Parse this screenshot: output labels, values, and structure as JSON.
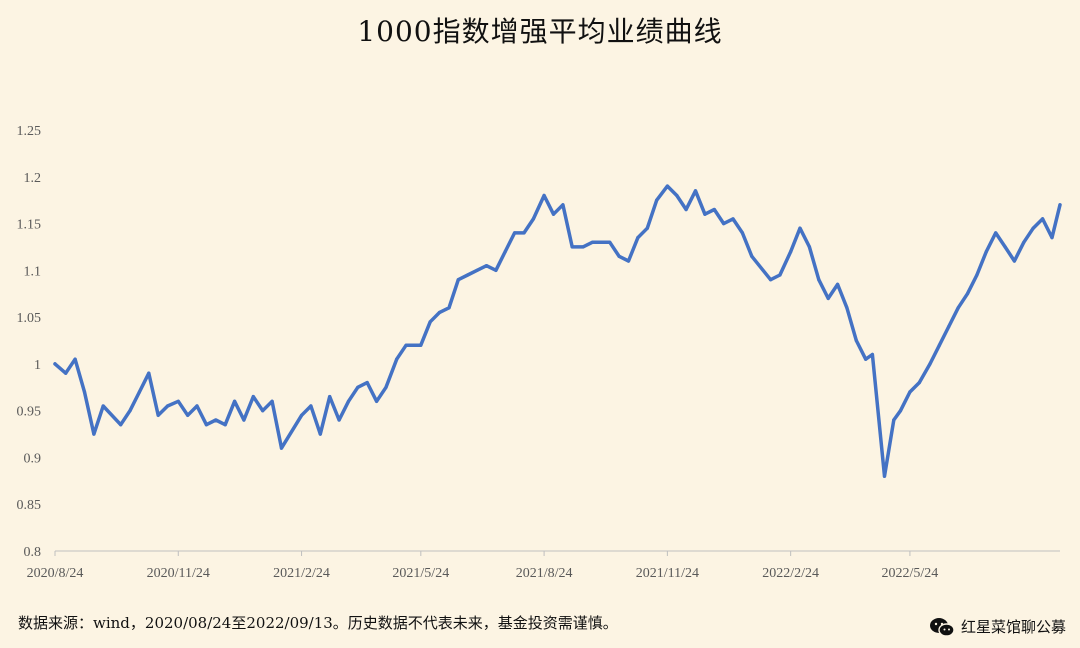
{
  "title": "1000指数增强平均业绩曲线",
  "footer_note": "数据来源：wind，2020/08/24至2022/09/13。历史数据不代表未来，基金投资需谨慎。",
  "brand": "红星菜馆聊公募",
  "line_color": "#4472c4",
  "chart_data": {
    "type": "line",
    "title": "1000指数增强平均业绩曲线",
    "ylim": [
      0.8,
      1.25
    ],
    "yticks": [
      "0.8",
      "0.85",
      "0.9",
      "0.95",
      "1",
      "1.05",
      "1.1",
      "1.15",
      "1.2",
      "1.25"
    ],
    "xticks": [
      "2020/8/24",
      "2020/11/24",
      "2021/2/24",
      "2021/5/24",
      "2021/8/24",
      "2021/11/24",
      "2022/2/24",
      "2022/5/24"
    ],
    "x": [
      "2020-08-24",
      "2020-09-01",
      "2020-09-08",
      "2020-09-15",
      "2020-09-22",
      "2020-09-29",
      "2020-10-12",
      "2020-10-19",
      "2020-10-26",
      "2020-11-02",
      "2020-11-09",
      "2020-11-16",
      "2020-11-24",
      "2020-12-01",
      "2020-12-08",
      "2020-12-15",
      "2020-12-22",
      "2020-12-29",
      "2021-01-05",
      "2021-01-12",
      "2021-01-19",
      "2021-01-26",
      "2021-02-02",
      "2021-02-09",
      "2021-02-24",
      "2021-03-03",
      "2021-03-10",
      "2021-03-17",
      "2021-03-24",
      "2021-03-31",
      "2021-04-07",
      "2021-04-14",
      "2021-04-21",
      "2021-04-28",
      "2021-05-06",
      "2021-05-13",
      "2021-05-24",
      "2021-05-31",
      "2021-06-07",
      "2021-06-14",
      "2021-06-21",
      "2021-06-28",
      "2021-07-05",
      "2021-07-12",
      "2021-07-19",
      "2021-07-26",
      "2021-08-02",
      "2021-08-09",
      "2021-08-16",
      "2021-08-24",
      "2021-08-31",
      "2021-09-07",
      "2021-09-14",
      "2021-09-22",
      "2021-09-29",
      "2021-10-12",
      "2021-10-19",
      "2021-10-26",
      "2021-11-02",
      "2021-11-09",
      "2021-11-16",
      "2021-11-24",
      "2021-12-01",
      "2021-12-08",
      "2021-12-15",
      "2021-12-22",
      "2021-12-29",
      "2022-01-05",
      "2022-01-12",
      "2022-01-19",
      "2022-01-26",
      "2022-02-09",
      "2022-02-16",
      "2022-02-24",
      "2022-03-03",
      "2022-03-10",
      "2022-03-17",
      "2022-03-24",
      "2022-03-31",
      "2022-04-07",
      "2022-04-14",
      "2022-04-21",
      "2022-04-26",
      "2022-05-05",
      "2022-05-12",
      "2022-05-17",
      "2022-05-24",
      "2022-05-31",
      "2022-06-08",
      "2022-06-15",
      "2022-06-22",
      "2022-06-29",
      "2022-07-06",
      "2022-07-13",
      "2022-07-20",
      "2022-07-27",
      "2022-08-03",
      "2022-08-10",
      "2022-08-17",
      "2022-08-24",
      "2022-08-31",
      "2022-09-07",
      "2022-09-13"
    ],
    "series": [
      {
        "values": [
          1.0,
          0.99,
          1.005,
          0.97,
          0.925,
          0.955,
          0.935,
          0.95,
          0.97,
          0.99,
          0.945,
          0.955,
          0.96,
          0.945,
          0.955,
          0.935,
          0.94,
          0.935,
          0.96,
          0.94,
          0.965,
          0.95,
          0.96,
          0.91,
          0.945,
          0.955,
          0.925,
          0.965,
          0.94,
          0.96,
          0.975,
          0.98,
          0.96,
          0.975,
          1.005,
          1.02,
          1.02,
          1.045,
          1.055,
          1.06,
          1.09,
          1.095,
          1.1,
          1.105,
          1.1,
          1.12,
          1.14,
          1.14,
          1.155,
          1.18,
          1.16,
          1.17,
          1.125,
          1.125,
          1.13,
          1.13,
          1.115,
          1.11,
          1.135,
          1.145,
          1.175,
          1.19,
          1.18,
          1.165,
          1.185,
          1.16,
          1.165,
          1.15,
          1.155,
          1.14,
          1.115,
          1.09,
          1.095,
          1.12,
          1.145,
          1.125,
          1.09,
          1.07,
          1.085,
          1.06,
          1.025,
          1.005,
          1.01,
          0.88,
          0.94,
          0.95,
          0.97,
          0.98,
          1.0,
          1.02,
          1.04,
          1.06,
          1.075,
          1.095,
          1.12,
          1.14,
          1.125,
          1.11,
          1.13,
          1.145,
          1.155,
          1.135,
          1.17
        ]
      }
    ]
  }
}
